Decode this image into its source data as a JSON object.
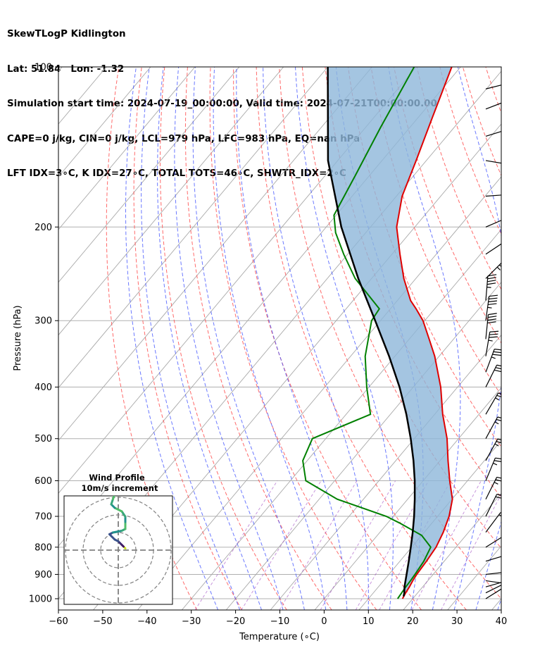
{
  "chart_data": {
    "type": "skewt-logp",
    "title_lines": [
      "SkewTLogP Kidlington",
      "Lat: 51.84   Lon: -1.32",
      "Simulation start time: 2024-07-19_00:00:00, Valid time: 2024-07-21T00:00:00.00",
      "CAPE=0 j/kg, CIN=0 j/kg, LCL=979 hPa, LFC=983 hPa, EQ=nan hPa",
      "LFT IDX=3∘C, K IDX=27∘C, TOTAL TOTS=46∘C, SHWTR_IDX=2∘C"
    ],
    "xlabel": "Temperature (∘C)",
    "ylabel": "Pressure (hPa)",
    "xlim": [
      -60,
      40
    ],
    "ylim": [
      1050,
      100
    ],
    "x_ticks": [
      -60,
      -50,
      -40,
      -30,
      -20,
      -10,
      0,
      10,
      20,
      30,
      40
    ],
    "x_tick_labels": [
      "−60",
      "−50",
      "−40",
      "−30",
      "−20",
      "−10",
      "0",
      "10",
      "20",
      "30",
      "40"
    ],
    "y_ticks": [
      1000,
      900,
      800,
      700,
      600,
      500,
      400,
      300,
      200,
      100
    ],
    "y_tick_labels": [
      "1000",
      "900",
      "800",
      "700",
      "600",
      "500",
      "400",
      "300",
      "200",
      "100"
    ],
    "series": [
      {
        "name": "temperature",
        "color": "#e00000",
        "points": [
          [
            1000,
            17.7
          ],
          [
            975,
            17.3
          ],
          [
            950,
            17.0
          ],
          [
            925,
            16.6
          ],
          [
            900,
            16.3
          ],
          [
            850,
            16.0
          ],
          [
            800,
            15.5
          ],
          [
            750,
            14.3
          ],
          [
            700,
            12.6
          ],
          [
            650,
            10.1
          ],
          [
            600,
            6.0
          ],
          [
            550,
            1.8
          ],
          [
            500,
            -2.6
          ],
          [
            450,
            -8.2
          ],
          [
            400,
            -13.8
          ],
          [
            350,
            -21.0
          ],
          [
            325,
            -25.5
          ],
          [
            300,
            -30.4
          ],
          [
            285,
            -34.2
          ],
          [
            275,
            -37.0
          ],
          [
            250,
            -42.7
          ],
          [
            225,
            -48.2
          ],
          [
            200,
            -54.1
          ],
          [
            175,
            -58.7
          ],
          [
            150,
            -62.3
          ],
          [
            125,
            -66.7
          ],
          [
            100,
            -72.0
          ]
        ]
      },
      {
        "name": "dewpoint",
        "color": "#008000",
        "points": [
          [
            1000,
            16.6
          ],
          [
            975,
            16.4
          ],
          [
            950,
            16.2
          ],
          [
            925,
            16.1
          ],
          [
            900,
            15.9
          ],
          [
            850,
            15.4
          ],
          [
            800,
            14.3
          ],
          [
            760,
            10.0
          ],
          [
            720,
            2.6
          ],
          [
            700,
            -1.6
          ],
          [
            650,
            -15.9
          ],
          [
            600,
            -26.5
          ],
          [
            550,
            -31.0
          ],
          [
            500,
            -33.0
          ],
          [
            450,
            -24.5
          ],
          [
            400,
            -30.5
          ],
          [
            350,
            -36.7
          ],
          [
            300,
            -42.0
          ],
          [
            285,
            -42.5
          ],
          [
            250,
            -53.7
          ],
          [
            225,
            -60.9
          ],
          [
            205,
            -66.8
          ],
          [
            190,
            -70.5
          ],
          [
            160,
            -73.2
          ],
          [
            130,
            -76.6
          ],
          [
            100,
            -80.5
          ]
        ]
      },
      {
        "name": "parcel",
        "color": "#000000",
        "points": [
          [
            990,
            17.5
          ],
          [
            975,
            17.0
          ],
          [
            950,
            15.9
          ],
          [
            900,
            14.0
          ],
          [
            850,
            12.0
          ],
          [
            800,
            9.8
          ],
          [
            750,
            7.4
          ],
          [
            700,
            4.7
          ],
          [
            650,
            1.6
          ],
          [
            600,
            -1.9
          ],
          [
            550,
            -6.0
          ],
          [
            500,
            -10.8
          ],
          [
            450,
            -16.4
          ],
          [
            400,
            -23.1
          ],
          [
            350,
            -31.3
          ],
          [
            300,
            -41.2
          ],
          [
            250,
            -53.0
          ],
          [
            200,
            -66.6
          ],
          [
            150,
            -82.2
          ],
          [
            100,
            -100.0
          ]
        ]
      }
    ],
    "shaded_region": "CAPE/CIN area between temperature and parcel",
    "wind_barbs_side": "right",
    "wind_barbs": [
      {
        "p": 1000,
        "u": 8,
        "v": 5
      },
      {
        "p": 975,
        "u": 8,
        "v": 4
      },
      {
        "p": 950,
        "u": 7,
        "v": 2
      },
      {
        "p": 925,
        "u": 7,
        "v": -1
      },
      {
        "p": 900,
        "u": 9,
        "v": 1
      },
      {
        "p": 850,
        "u": 10,
        "v": 3
      },
      {
        "p": 800,
        "u": 8,
        "v": 5
      },
      {
        "p": 750,
        "u": 6,
        "v": 8
      },
      {
        "p": 700,
        "u": 5,
        "v": 10
      },
      {
        "p": 650,
        "u": 6,
        "v": 12
      },
      {
        "p": 600,
        "u": 5,
        "v": 12
      },
      {
        "p": 550,
        "u": 6,
        "v": 11
      },
      {
        "p": 500,
        "u": 6,
        "v": 11
      },
      {
        "p": 450,
        "u": 7,
        "v": 12
      },
      {
        "p": 400,
        "u": 7,
        "v": 14
      },
      {
        "p": 375,
        "u": 6,
        "v": 16
      },
      {
        "p": 350,
        "u": 3,
        "v": 18
      },
      {
        "p": 325,
        "u": 2,
        "v": 20
      },
      {
        "p": 300,
        "u": 3,
        "v": 22
      },
      {
        "p": 275,
        "u": 2,
        "v": 24
      },
      {
        "p": 250,
        "u": 12,
        "v": 12
      },
      {
        "p": 225,
        "u": 12,
        "v": 8
      },
      {
        "p": 200,
        "u": 14,
        "v": 6
      },
      {
        "p": 175,
        "u": 14,
        "v": 1
      },
      {
        "p": 150,
        "u": 12,
        "v": -2
      },
      {
        "p": 135,
        "u": 13,
        "v": 4
      },
      {
        "p": 120,
        "u": 13,
        "v": 5
      },
      {
        "p": 110,
        "u": 12,
        "v": 3
      }
    ],
    "hodograph": {
      "title": "Wind Profile",
      "subtitle": "10m/s increment",
      "rings": [
        10,
        20,
        30
      ],
      "points": [
        [
          4,
          1
        ],
        [
          3,
          2
        ],
        [
          2,
          3
        ],
        [
          1,
          4
        ],
        [
          0,
          5
        ],
        [
          -2,
          6
        ],
        [
          -4,
          8
        ],
        [
          -5,
          9
        ],
        [
          -3,
          10
        ],
        [
          2,
          11
        ],
        [
          4,
          12
        ],
        [
          4,
          16
        ],
        [
          4,
          19
        ],
        [
          2,
          22
        ],
        [
          -2,
          24
        ],
        [
          -4,
          26
        ],
        [
          -3,
          29
        ],
        [
          -2,
          32
        ],
        [
          -4,
          33
        ],
        [
          -6,
          32
        ],
        [
          -8,
          34
        ]
      ]
    },
    "reference_lines": {
      "isotherms": "gray solid every 10∘C",
      "dry_adiabats": "red dashed",
      "moist_adiabats": "blue dashed",
      "mixing_ratio": "purple dashed"
    }
  }
}
